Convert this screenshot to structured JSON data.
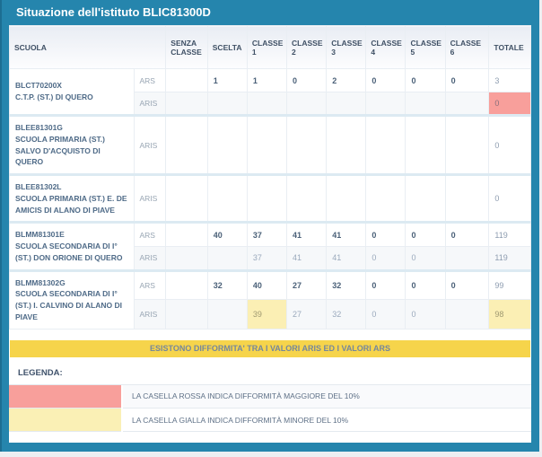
{
  "title": "Situazione dell'istituto BLIC81300D",
  "colors": {
    "accent_teal": "#2585ad",
    "warn_major_red": "#f89f9b",
    "warn_minor_yellow": "#fbefb4",
    "banner_yellow": "#f6d44b"
  },
  "table": {
    "headers": [
      "SCUOLA",
      "SENZA CLASSE",
      "SCELTA",
      "CLASSE 1",
      "CLASSE 2",
      "CLASSE 3",
      "CLASSE 4",
      "CLASSE 5",
      "CLASSE 6",
      "TOTALE"
    ],
    "schools": [
      {
        "code": "BLCT70200X",
        "name": "C.T.P. (ST.) DI QUERO",
        "rows": [
          {
            "type": "ARS",
            "values": [
              "",
              "1",
              "1",
              "0",
              "2",
              "0",
              "0",
              "0",
              "3"
            ]
          },
          {
            "type": "ARIS",
            "values": [
              "",
              "",
              "",
              "",
              "",
              "",
              "",
              "",
              "0"
            ]
          }
        ]
      },
      {
        "code": "BLEE81301G",
        "name": "SCUOLA PRIMARIA (ST.) SALVO D'ACQUISTO DI QUERO",
        "rows": [
          {
            "type": "ARIS",
            "values": [
              "",
              "",
              "",
              "",
              "",
              "",
              "",
              "",
              "0"
            ]
          }
        ]
      },
      {
        "code": "BLEE81302L",
        "name": "SCUOLA PRIMARIA (ST.) E. DE AMICIS DI ALANO DI PIAVE",
        "rows": [
          {
            "type": "ARIS",
            "values": [
              "",
              "",
              "",
              "",
              "",
              "",
              "",
              "",
              "0"
            ]
          }
        ]
      },
      {
        "code": "BLMM81301E",
        "name": "SCUOLA SECONDARIA DI I° (ST.) DON ORIONE DI QUERO",
        "rows": [
          {
            "type": "ARS",
            "values": [
              "",
              "40",
              "37",
              "41",
              "41",
              "0",
              "0",
              "0",
              "119"
            ]
          },
          {
            "type": "ARIS",
            "values": [
              "",
              "",
              "37",
              "41",
              "41",
              "0",
              "0",
              "",
              "119"
            ]
          }
        ]
      },
      {
        "code": "BLMM81302G",
        "name": "SCUOLA SECONDARIA DI I° (ST.) I. CALVINO DI ALANO DI PIAVE",
        "rows": [
          {
            "type": "ARS",
            "values": [
              "",
              "32",
              "40",
              "27",
              "32",
              "0",
              "0",
              "0",
              "99"
            ]
          },
          {
            "type": "ARIS",
            "values": [
              "",
              "",
              "39",
              "27",
              "32",
              "0",
              "0",
              "",
              "98"
            ]
          }
        ]
      }
    ]
  },
  "banner": {
    "text": "ESISTONO DIFFORMITA' TRA I VALORI ARIS ED I VALORI ARS"
  },
  "legend": {
    "title": "LEGENDA:",
    "items": [
      {
        "swatch": "red-cell-swatch",
        "text": "LA CASELLA ROSSA INDICA DIFFORMITÀ MAGGIORE DEL 10%"
      },
      {
        "swatch": "yellow-cell-swatch",
        "text": "LA CASELLA GIALLA INDICA DIFFORMITÀ MINORE DEL 10%"
      }
    ]
  }
}
